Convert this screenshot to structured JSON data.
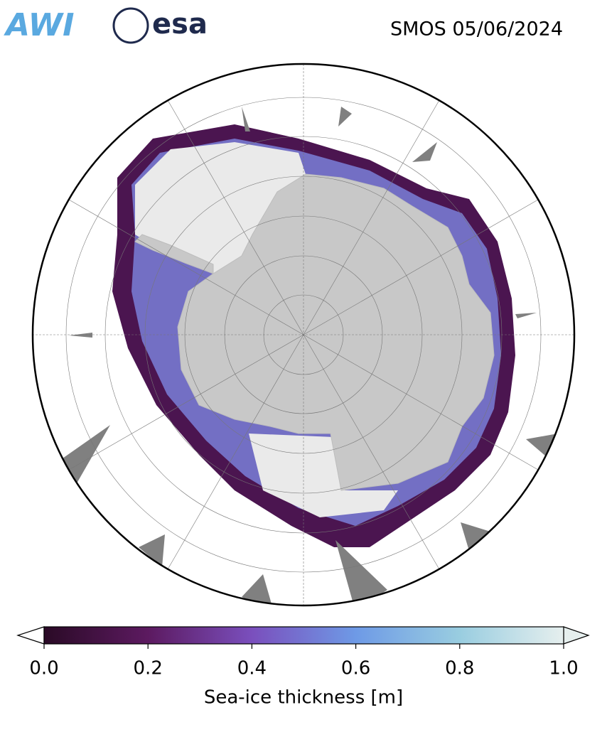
{
  "header": {
    "logos": [
      "AWI",
      "esa"
    ],
    "title": "SMOS 05/06/2024"
  },
  "colorbar": {
    "label": "Sea-ice thickness [m]",
    "lim": [
      0,
      1
    ],
    "ticks": [
      {
        "value": 0,
        "label": "0.0"
      },
      {
        "value": 0.2,
        "label": "0.2"
      },
      {
        "value": 0.4,
        "label": "0.4"
      },
      {
        "value": 0.6,
        "label": "0.6"
      },
      {
        "value": 0.8,
        "label": "0.8"
      },
      {
        "value": 1,
        "label": "1.0"
      }
    ]
  }
}
